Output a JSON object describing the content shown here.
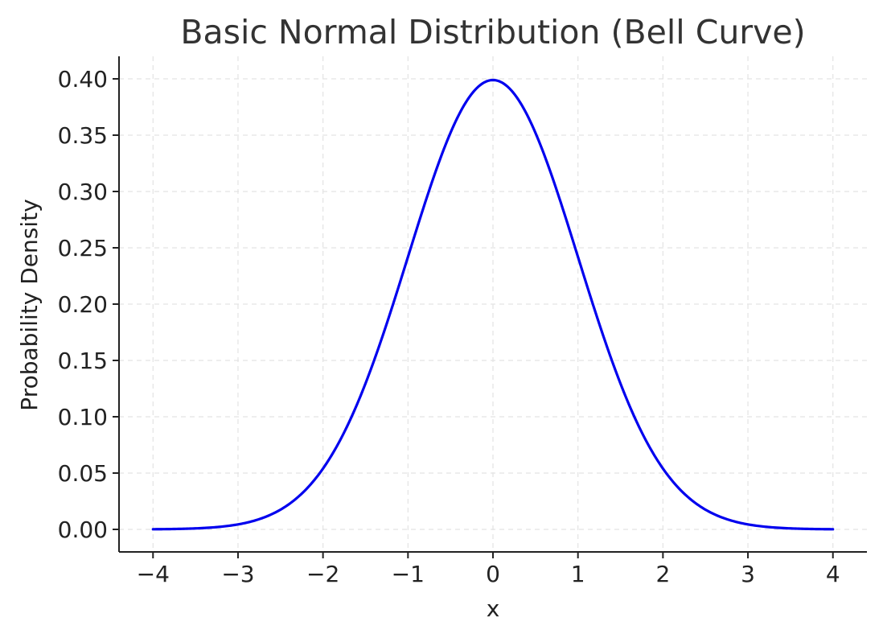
{
  "chart_data": {
    "type": "line",
    "title": "Basic Normal Distribution (Bell Curve)",
    "xlabel": "x",
    "ylabel": "Probability Density",
    "xlim": [
      -4.4,
      4.4
    ],
    "ylim": [
      -0.02,
      0.42
    ],
    "x_ticks": [
      -4,
      -3,
      -2,
      -1,
      0,
      1,
      2,
      3,
      4
    ],
    "x_tick_labels": [
      "−4",
      "−3",
      "−2",
      "−1",
      "0",
      "1",
      "2",
      "3",
      "4"
    ],
    "y_ticks": [
      0.0,
      0.05,
      0.1,
      0.15,
      0.2,
      0.25,
      0.3,
      0.35,
      0.4
    ],
    "y_tick_labels": [
      "0.00",
      "0.05",
      "0.10",
      "0.15",
      "0.20",
      "0.25",
      "0.30",
      "0.35",
      "0.40"
    ],
    "grid": true,
    "series": [
      {
        "color": "#0000ee",
        "x": [
          -4.0,
          -3.75,
          -3.5,
          -3.25,
          -3.0,
          -2.75,
          -2.5,
          -2.25,
          -2.0,
          -1.75,
          -1.5,
          -1.25,
          -1.0,
          -0.75,
          -0.5,
          -0.25,
          0.0,
          0.25,
          0.5,
          0.75,
          1.0,
          1.25,
          1.5,
          1.75,
          2.0,
          2.25,
          2.5,
          2.75,
          3.0,
          3.25,
          3.5,
          3.75,
          4.0
        ],
        "y": [
          0.0001,
          0.0004,
          0.0009,
          0.002,
          0.0044,
          0.0091,
          0.0175,
          0.0317,
          0.054,
          0.0863,
          0.1295,
          0.1826,
          0.242,
          0.3011,
          0.3521,
          0.3867,
          0.3989,
          0.3867,
          0.3521,
          0.3011,
          0.242,
          0.1826,
          0.1295,
          0.0863,
          0.054,
          0.0317,
          0.0175,
          0.0091,
          0.0044,
          0.002,
          0.0009,
          0.0004,
          0.0001
        ]
      }
    ]
  }
}
